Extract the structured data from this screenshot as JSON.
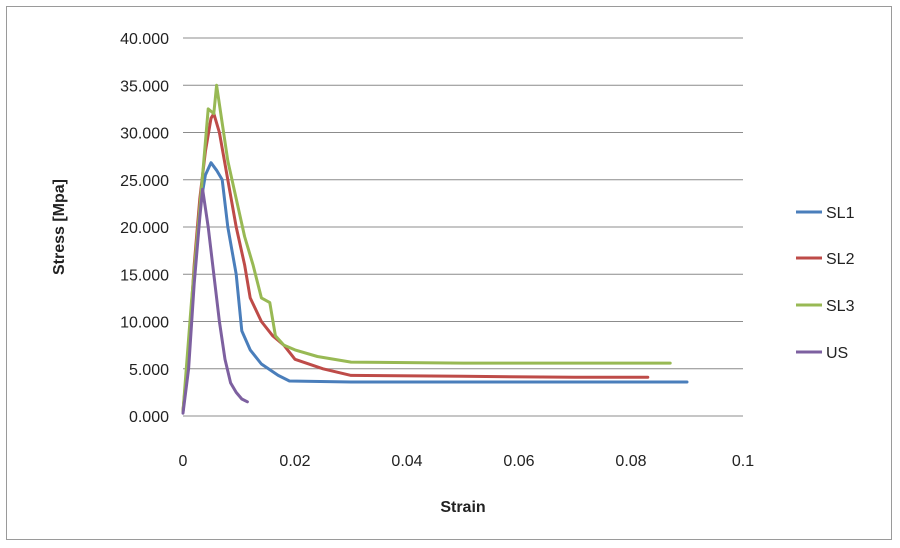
{
  "chart_data": {
    "type": "line",
    "title": "",
    "xlabel": "Strain",
    "ylabel": "Stress [Mpa]",
    "xlim": [
      0,
      0.1
    ],
    "ylim": [
      0,
      40
    ],
    "x_ticks": [
      0,
      0.02,
      0.04,
      0.06,
      0.08,
      0.1
    ],
    "x_tick_labels": [
      "0",
      "0.02",
      "0.04",
      "0.06",
      "0.08",
      "0.1"
    ],
    "y_ticks": [
      0,
      5,
      10,
      15,
      20,
      25,
      30,
      35,
      40
    ],
    "y_tick_labels": [
      "0.000",
      "5.000",
      "10.000",
      "15.000",
      "20.000",
      "25.000",
      "30.000",
      "35.000",
      "40.000"
    ],
    "grid": "horizontal",
    "legend_position": "right",
    "series": [
      {
        "name": "SL1",
        "color": "#4a7ebb",
        "points": [
          [
            0,
            0.5
          ],
          [
            0.001,
            6
          ],
          [
            0.002,
            15
          ],
          [
            0.003,
            22
          ],
          [
            0.004,
            25.5
          ],
          [
            0.005,
            26.8
          ],
          [
            0.006,
            26
          ],
          [
            0.007,
            25
          ],
          [
            0.008,
            20
          ],
          [
            0.0095,
            15
          ],
          [
            0.0105,
            9
          ],
          [
            0.012,
            7
          ],
          [
            0.014,
            5.5
          ],
          [
            0.017,
            4.3
          ],
          [
            0.019,
            3.7
          ],
          [
            0.03,
            3.6
          ],
          [
            0.05,
            3.6
          ],
          [
            0.07,
            3.6
          ],
          [
            0.09,
            3.6
          ]
        ]
      },
      {
        "name": "SL2",
        "color": "#be4b48",
        "points": [
          [
            0,
            0.5
          ],
          [
            0.001,
            7
          ],
          [
            0.002,
            16
          ],
          [
            0.003,
            23
          ],
          [
            0.004,
            28
          ],
          [
            0.005,
            31.5
          ],
          [
            0.0055,
            32
          ],
          [
            0.0065,
            30
          ],
          [
            0.008,
            25
          ],
          [
            0.0095,
            20
          ],
          [
            0.011,
            16
          ],
          [
            0.012,
            12.5
          ],
          [
            0.014,
            10
          ],
          [
            0.016,
            8.5
          ],
          [
            0.018,
            7.5
          ],
          [
            0.02,
            6
          ],
          [
            0.025,
            5
          ],
          [
            0.03,
            4.3
          ],
          [
            0.05,
            4.2
          ],
          [
            0.07,
            4.1
          ],
          [
            0.083,
            4.1
          ]
        ]
      },
      {
        "name": "SL3",
        "color": "#98b954",
        "points": [
          [
            0,
            0.5
          ],
          [
            0.0015,
            12
          ],
          [
            0.003,
            22
          ],
          [
            0.0045,
            32.5
          ],
          [
            0.0055,
            32
          ],
          [
            0.006,
            35
          ],
          [
            0.007,
            31
          ],
          [
            0.008,
            27
          ],
          [
            0.0095,
            23
          ],
          [
            0.011,
            19
          ],
          [
            0.0125,
            16
          ],
          [
            0.014,
            12.5
          ],
          [
            0.0155,
            12
          ],
          [
            0.0165,
            8.5
          ],
          [
            0.018,
            7.5
          ],
          [
            0.02,
            7
          ],
          [
            0.024,
            6.3
          ],
          [
            0.03,
            5.7
          ],
          [
            0.05,
            5.6
          ],
          [
            0.07,
            5.6
          ],
          [
            0.087,
            5.6
          ]
        ]
      },
      {
        "name": "US",
        "color": "#7d60a0",
        "points": [
          [
            0,
            0.3
          ],
          [
            0.001,
            5
          ],
          [
            0.002,
            14
          ],
          [
            0.003,
            21
          ],
          [
            0.0035,
            24
          ],
          [
            0.0045,
            20
          ],
          [
            0.0055,
            15
          ],
          [
            0.0065,
            10
          ],
          [
            0.0075,
            6
          ],
          [
            0.0085,
            3.5
          ],
          [
            0.0095,
            2.5
          ],
          [
            0.0105,
            1.8
          ],
          [
            0.0115,
            1.5
          ]
        ]
      }
    ]
  }
}
